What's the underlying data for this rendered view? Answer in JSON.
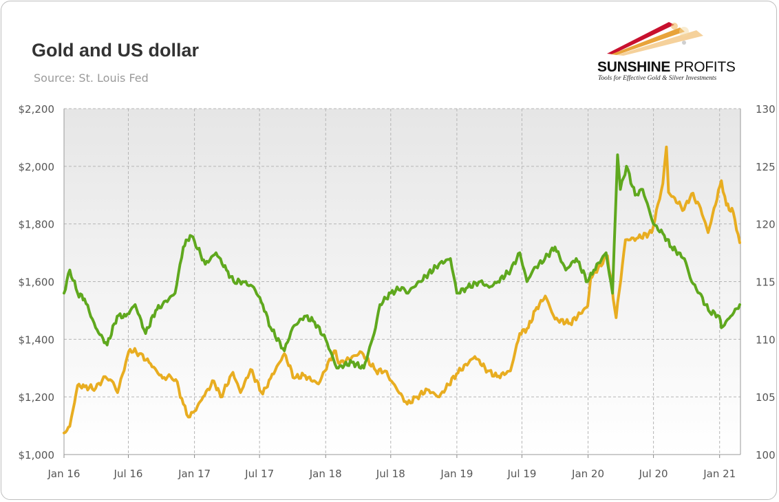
{
  "title": "Gold and US dollar",
  "source": "Source: St. Louis Fed",
  "logo": {
    "name_bold": "SUNSHINE",
    "name_light": "PROFITS",
    "tagline": "Tools for Effective Gold & Silver Investments",
    "colors": [
      "#c8102e",
      "#e8a33a",
      "#f3c98a"
    ]
  },
  "chart_data": {
    "type": "line",
    "title": "Gold and US dollar",
    "x_ticks": [
      "Jan 16",
      "Jul 16",
      "Jan 17",
      "Jul 17",
      "Jan 18",
      "Jul 18",
      "Jan 19",
      "Jul 19",
      "Jan 20",
      "Jul 20",
      "Jan 21"
    ],
    "y_left": {
      "ticks": [
        "$1,000",
        "$1,200",
        "$1,400",
        "$1,600",
        "$1,800",
        "$2,000",
        "$2,200"
      ],
      "range": [
        1000,
        2200
      ]
    },
    "y_right": {
      "ticks": [
        "100",
        "105",
        "110",
        "115",
        "120",
        "125",
        "130"
      ],
      "range": [
        100,
        130
      ]
    },
    "grid": true,
    "series": [
      {
        "color": "#e8ad21",
        "axis": "left",
        "points": [
          [
            "2016-01-04",
            1075
          ],
          [
            "2016-01-20",
            1098
          ],
          [
            "2016-02-11",
            1240
          ],
          [
            "2016-03-01",
            1235
          ],
          [
            "2016-04-01",
            1230
          ],
          [
            "2016-04-28",
            1270
          ],
          [
            "2016-05-20",
            1250
          ],
          [
            "2016-06-01",
            1215
          ],
          [
            "2016-06-24",
            1320
          ],
          [
            "2016-07-06",
            1365
          ],
          [
            "2016-08-01",
            1350
          ],
          [
            "2016-09-01",
            1315
          ],
          [
            "2016-10-04",
            1265
          ],
          [
            "2016-10-27",
            1270
          ],
          [
            "2016-11-10",
            1260
          ],
          [
            "2016-12-01",
            1175
          ],
          [
            "2016-12-15",
            1130
          ],
          [
            "2017-01-01",
            1150
          ],
          [
            "2017-01-25",
            1200
          ],
          [
            "2017-02-24",
            1255
          ],
          [
            "2017-03-15",
            1200
          ],
          [
            "2017-04-18",
            1285
          ],
          [
            "2017-05-09",
            1215
          ],
          [
            "2017-06-06",
            1295
          ],
          [
            "2017-07-10",
            1210
          ],
          [
            "2017-08-01",
            1265
          ],
          [
            "2017-09-08",
            1350
          ],
          [
            "2017-10-06",
            1265
          ],
          [
            "2017-11-01",
            1275
          ],
          [
            "2017-12-12",
            1245
          ],
          [
            "2018-01-25",
            1360
          ],
          [
            "2018-02-09",
            1315
          ],
          [
            "2018-04-11",
            1355
          ],
          [
            "2018-05-21",
            1290
          ],
          [
            "2018-06-15",
            1290
          ],
          [
            "2018-07-03",
            1255
          ],
          [
            "2018-08-16",
            1175
          ],
          [
            "2018-09-12",
            1200
          ],
          [
            "2018-10-11",
            1225
          ],
          [
            "2018-11-13",
            1200
          ],
          [
            "2018-12-31",
            1280
          ],
          [
            "2019-02-20",
            1340
          ],
          [
            "2019-03-28",
            1290
          ],
          [
            "2019-04-23",
            1270
          ],
          [
            "2019-05-30",
            1290
          ],
          [
            "2019-06-25",
            1420
          ],
          [
            "2019-07-19",
            1440
          ],
          [
            "2019-08-07",
            1500
          ],
          [
            "2019-09-04",
            1550
          ],
          [
            "2019-10-01",
            1470
          ],
          [
            "2019-11-12",
            1455
          ],
          [
            "2019-12-31",
            1515
          ],
          [
            "2020-01-08",
            1610
          ],
          [
            "2020-02-24",
            1690
          ],
          [
            "2020-03-19",
            1475
          ],
          [
            "2020-04-14",
            1745
          ],
          [
            "2020-05-15",
            1750
          ],
          [
            "2020-06-26",
            1770
          ],
          [
            "2020-07-27",
            1940
          ],
          [
            "2020-08-06",
            2067
          ],
          [
            "2020-08-12",
            1910
          ],
          [
            "2020-09-24",
            1850
          ],
          [
            "2020-10-15",
            1905
          ],
          [
            "2020-11-09",
            1855
          ],
          [
            "2020-11-30",
            1770
          ],
          [
            "2021-01-06",
            1950
          ],
          [
            "2021-01-20",
            1865
          ],
          [
            "2021-02-08",
            1840
          ],
          [
            "2021-02-26",
            1735
          ]
        ]
      },
      {
        "color": "#5fa81e",
        "axis": "right",
        "points": [
          [
            "2016-01-04",
            114
          ],
          [
            "2016-01-20",
            116
          ],
          [
            "2016-02-11",
            114
          ],
          [
            "2016-03-01",
            113.5
          ],
          [
            "2016-04-01",
            111
          ],
          [
            "2016-05-03",
            109.5
          ],
          [
            "2016-05-31",
            112
          ],
          [
            "2016-06-24",
            112
          ],
          [
            "2016-07-20",
            113
          ],
          [
            "2016-08-18",
            110.5
          ],
          [
            "2016-09-15",
            112.5
          ],
          [
            "2016-10-04",
            113
          ],
          [
            "2016-11-08",
            114
          ],
          [
            "2016-12-01",
            118
          ],
          [
            "2016-12-20",
            119
          ],
          [
            "2017-01-01",
            118.5
          ],
          [
            "2017-01-31",
            116.5
          ],
          [
            "2017-03-02",
            117.5
          ],
          [
            "2017-03-31",
            116
          ],
          [
            "2017-04-20",
            115
          ],
          [
            "2017-05-15",
            115
          ],
          [
            "2017-06-15",
            114.5
          ],
          [
            "2017-07-10",
            113
          ],
          [
            "2017-08-01",
            111
          ],
          [
            "2017-09-08",
            109
          ],
          [
            "2017-10-01",
            111
          ],
          [
            "2017-11-03",
            112
          ],
          [
            "2017-12-01",
            111.5
          ],
          [
            "2018-01-01",
            110
          ],
          [
            "2018-02-01",
            107.5
          ],
          [
            "2018-03-15",
            108
          ],
          [
            "2018-04-17",
            107.5
          ],
          [
            "2018-05-20",
            111
          ],
          [
            "2018-06-01",
            113
          ],
          [
            "2018-07-01",
            114
          ],
          [
            "2018-08-01",
            114.5
          ],
          [
            "2018-08-14",
            114
          ],
          [
            "2018-09-20",
            115
          ],
          [
            "2018-11-12",
            116.5
          ],
          [
            "2018-12-14",
            117
          ],
          [
            "2019-01-01",
            114
          ],
          [
            "2019-01-31",
            114.5
          ],
          [
            "2019-03-07",
            115
          ],
          [
            "2019-04-01",
            114.5
          ],
          [
            "2019-04-25",
            115
          ],
          [
            "2019-05-31",
            116
          ],
          [
            "2019-06-25",
            117.5
          ],
          [
            "2019-07-15",
            115
          ],
          [
            "2019-08-01",
            116
          ],
          [
            "2019-09-03",
            117
          ],
          [
            "2019-10-01",
            118
          ],
          [
            "2019-10-31",
            116
          ],
          [
            "2019-11-29",
            117
          ],
          [
            "2019-12-31",
            115
          ],
          [
            "2020-01-17",
            116
          ],
          [
            "2020-02-20",
            117.5
          ],
          [
            "2020-03-09",
            114
          ],
          [
            "2020-03-23",
            126
          ],
          [
            "2020-03-31",
            123
          ],
          [
            "2020-04-17",
            125
          ],
          [
            "2020-05-11",
            122.5
          ],
          [
            "2020-06-01",
            123
          ],
          [
            "2020-07-01",
            120
          ],
          [
            "2020-07-31",
            119
          ],
          [
            "2020-08-20",
            118
          ],
          [
            "2020-09-25",
            117
          ],
          [
            "2020-10-15",
            115
          ],
          [
            "2020-11-06",
            114
          ],
          [
            "2020-12-01",
            112.5
          ],
          [
            "2020-12-31",
            112
          ],
          [
            "2021-01-06",
            111
          ],
          [
            "2021-02-01",
            112
          ],
          [
            "2021-02-26",
            113
          ]
        ]
      }
    ]
  }
}
